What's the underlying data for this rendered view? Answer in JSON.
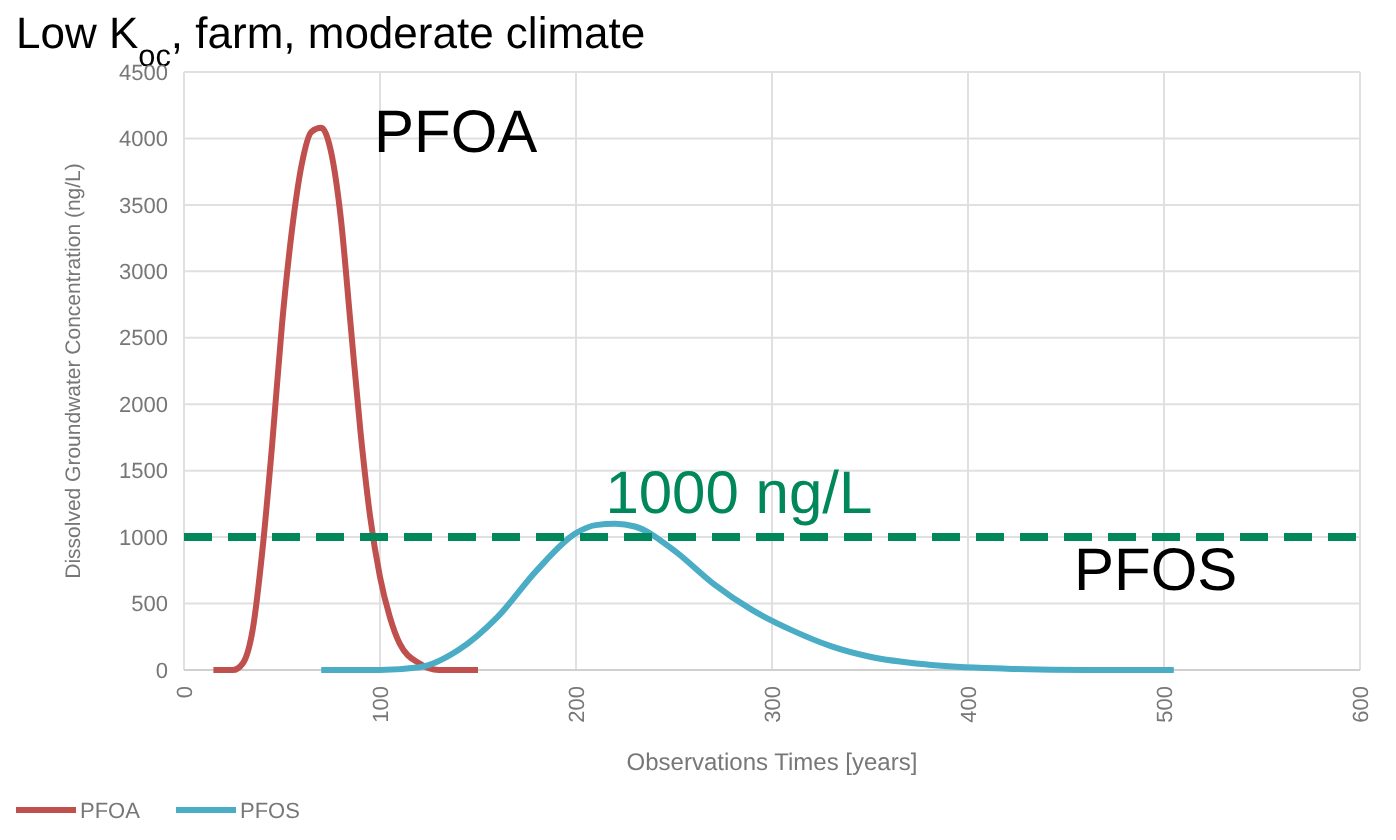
{
  "chart_data": {
    "type": "line",
    "title": "Low K$_{oc}$, farm, moderate climate",
    "xlabel": "Observations Times [years]",
    "ylabel": "Dissolved Groundwater Concentration (ng/L)",
    "xlim": [
      0,
      600
    ],
    "xticks": [
      0,
      100,
      200,
      300,
      400,
      500,
      600
    ],
    "ylim": [
      0,
      4500
    ],
    "yticks": [
      0,
      500,
      1000,
      1500,
      2000,
      2500,
      3000,
      3500,
      4000,
      4500
    ],
    "grid": true,
    "legend": "bottom left",
    "marker": "none",
    "line_style": "solid",
    "series": [
      {
        "name": "PFOA",
        "color": "#c0504d",
        "x": [
          15,
          25,
          30,
          35,
          40,
          45,
          50,
          55,
          60,
          65,
          70,
          75,
          80,
          85,
          90,
          95,
          100,
          105,
          110,
          120,
          130,
          150
        ],
        "values": [
          0,
          0,
          50,
          300,
          900,
          1700,
          2600,
          3300,
          3800,
          4050,
          4080,
          3900,
          3400,
          2600,
          1800,
          1150,
          700,
          400,
          200,
          50,
          0,
          0
        ]
      },
      {
        "name": "PFOS",
        "color": "#4bacc6",
        "x": [
          70,
          100,
          120,
          140,
          160,
          180,
          200,
          210,
          220,
          230,
          250,
          270,
          290,
          310,
          330,
          350,
          380,
          420,
          460,
          505
        ],
        "values": [
          0,
          0,
          20,
          150,
          400,
          750,
          1030,
          1090,
          1100,
          1080,
          900,
          650,
          450,
          300,
          180,
          100,
          40,
          10,
          0,
          0
        ]
      }
    ],
    "ref_lines": [
      {
        "axis": "y",
        "value": 1000,
        "label": "1000 ng/L",
        "color": "#00875a",
        "line_style": "dashed"
      }
    ],
    "annotations": [
      "PFOA",
      "PFOS"
    ]
  }
}
